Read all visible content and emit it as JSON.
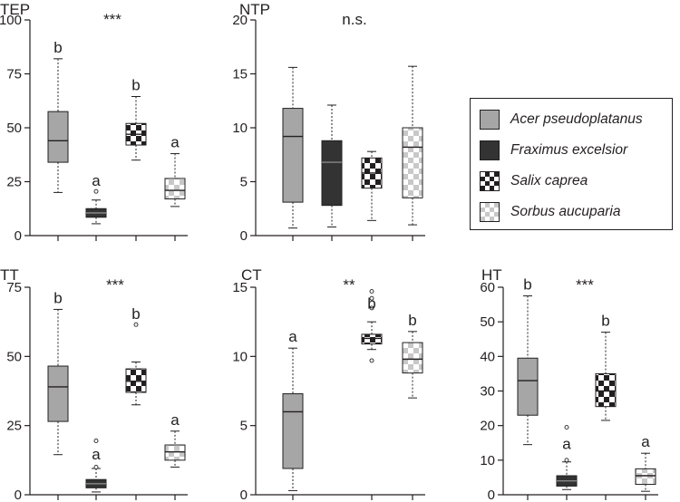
{
  "colors": {
    "acer": "#a6a6a6",
    "fraxinus": "#333333",
    "salix": "checker-black-white",
    "sorbus": "checker-lightgray-white",
    "axis": "#231f20"
  },
  "legend": {
    "items": [
      {
        "label": "Acer pseudoplatanus",
        "fill": "acer"
      },
      {
        "label": "Fraximus excelsior",
        "fill": "fraxinus"
      },
      {
        "label": "Salix caprea",
        "fill": "salix"
      },
      {
        "label": "Sorbus aucuparia",
        "fill": "sorbus"
      }
    ]
  },
  "chart_data": [
    {
      "type": "box",
      "title": "TEP",
      "significance": "***",
      "ylim": [
        0,
        100
      ],
      "yticks": [
        0,
        25,
        50,
        75,
        100
      ],
      "boxes": [
        {
          "fill": "acer",
          "min": 20,
          "q1": 34,
          "median": 44,
          "q3": 57.5,
          "max": 82,
          "outliers": [],
          "letter": "b"
        },
        {
          "fill": "fraxinus",
          "min": 5.5,
          "q1": 8.5,
          "median": 10.5,
          "q3": 12.5,
          "max": 16.5,
          "outliers": [
            20.5
          ],
          "letter": "a"
        },
        {
          "fill": "salix",
          "min": 35,
          "q1": 42,
          "median": 47,
          "q3": 52,
          "max": 64.5,
          "outliers": [],
          "letter": "b"
        },
        {
          "fill": "sorbus",
          "min": 13.5,
          "q1": 17,
          "median": 21,
          "q3": 26.5,
          "max": 38,
          "outliers": [],
          "letter": "a"
        }
      ]
    },
    {
      "type": "box",
      "title": "NTP",
      "significance": "n.s.",
      "ylim": [
        0,
        20
      ],
      "yticks": [
        0,
        5,
        10,
        15,
        20
      ],
      "boxes": [
        {
          "fill": "acer",
          "min": 0.7,
          "q1": 3.1,
          "median": 9.2,
          "q3": 11.8,
          "max": 15.6,
          "outliers": [],
          "letter": ""
        },
        {
          "fill": "fraxinus",
          "min": 0.8,
          "q1": 2.8,
          "median": 6.8,
          "q3": 8.8,
          "max": 12.1,
          "outliers": [],
          "letter": ""
        },
        {
          "fill": "salix",
          "min": 1.4,
          "q1": 4.4,
          "median": 5.8,
          "q3": 7.2,
          "max": 7.8,
          "outliers": [],
          "letter": ""
        },
        {
          "fill": "sorbus",
          "min": 1.0,
          "q1": 3.5,
          "median": 8.2,
          "q3": 10.0,
          "max": 15.7,
          "outliers": [],
          "letter": ""
        }
      ]
    },
    {
      "type": "box",
      "title": "TT",
      "significance": "***",
      "ylim": [
        0,
        75
      ],
      "yticks": [
        0,
        25,
        50,
        75
      ],
      "boxes": [
        {
          "fill": "acer",
          "min": 14.5,
          "q1": 26.5,
          "median": 39,
          "q3": 46.5,
          "max": 67,
          "outliers": [],
          "letter": "b"
        },
        {
          "fill": "fraxinus",
          "min": 1,
          "q1": 2.5,
          "median": 4,
          "q3": 5.5,
          "max": 9.5,
          "outliers": [
            10,
            19.5
          ],
          "letter": "a"
        },
        {
          "fill": "salix",
          "min": 32.5,
          "q1": 37,
          "median": 41,
          "q3": 45.5,
          "max": 48,
          "outliers": [
            61.5
          ],
          "letter": "b"
        },
        {
          "fill": "sorbus",
          "min": 10,
          "q1": 12.5,
          "median": 15.5,
          "q3": 18,
          "max": 23,
          "outliers": [],
          "letter": "a"
        }
      ]
    },
    {
      "type": "box",
      "title": "CT",
      "significance": "**",
      "ylim": [
        0,
        15
      ],
      "yticks": [
        0,
        5,
        10,
        15
      ],
      "boxes": [
        {
          "fill": "acer",
          "min": 0.3,
          "q1": 1.9,
          "median": 6.0,
          "q3": 7.3,
          "max": 10.6,
          "outliers": [],
          "letter": "a"
        },
        {
          "fill": "salix",
          "min": 10.5,
          "q1": 10.9,
          "median": 11.3,
          "q3": 11.6,
          "max": 12.5,
          "outliers": [
            9.7,
            13.5,
            14.2,
            14.7
          ],
          "letter": "b"
        },
        {
          "fill": "sorbus",
          "min": 7.0,
          "q1": 8.8,
          "median": 9.8,
          "q3": 11.0,
          "max": 11.8,
          "outliers": [],
          "letter": "b"
        }
      ]
    },
    {
      "type": "box",
      "title": "HT",
      "significance": "***",
      "ylim": [
        0,
        60
      ],
      "yticks": [
        0,
        10,
        20,
        30,
        40,
        50,
        60
      ],
      "boxes": [
        {
          "fill": "acer",
          "min": 14.5,
          "q1": 23,
          "median": 33,
          "q3": 39.5,
          "max": 57.5,
          "outliers": [],
          "letter": "b"
        },
        {
          "fill": "fraxinus",
          "min": 1.5,
          "q1": 2.5,
          "median": 4,
          "q3": 5.5,
          "max": 9.5,
          "outliers": [
            10,
            19.5
          ],
          "letter": "a"
        },
        {
          "fill": "salix",
          "min": 21.5,
          "q1": 25.5,
          "median": 30,
          "q3": 35,
          "max": 47,
          "outliers": [],
          "letter": "b"
        },
        {
          "fill": "sorbus",
          "min": 1,
          "q1": 3,
          "median": 5.5,
          "q3": 7.5,
          "max": 12,
          "outliers": [],
          "letter": "a"
        }
      ]
    }
  ]
}
